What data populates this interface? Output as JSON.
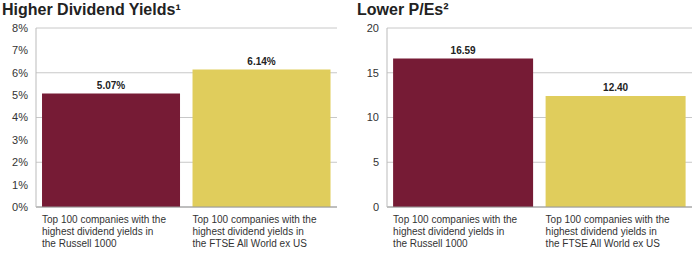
{
  "chart_data": [
    {
      "type": "bar",
      "title": "Higher Dividend Yields¹",
      "categories": [
        "Top 100 companies with the highest dividend yields in the Russell 1000",
        "Top 100 companies with the highest dividend yields in the FTSE All World ex US"
      ],
      "values": [
        5.07,
        6.14
      ],
      "value_labels": [
        "5.07%",
        "6.14%"
      ],
      "colors": [
        "#761b35",
        "#e0cd5c"
      ],
      "ylim": [
        0,
        8
      ],
      "yticks": [
        {
          "value": 0,
          "label": "0%"
        },
        {
          "value": 1,
          "label": "1%"
        },
        {
          "value": 2,
          "label": "2%"
        },
        {
          "value": 3,
          "label": "3%"
        },
        {
          "value": 4,
          "label": "4%"
        },
        {
          "value": 5,
          "label": "5%"
        },
        {
          "value": 6,
          "label": "6%"
        },
        {
          "value": 7,
          "label": "7%"
        },
        {
          "value": 8,
          "label": "8%"
        }
      ],
      "grid": true,
      "data_labels": true
    },
    {
      "type": "bar",
      "title": "Lower P/Es²",
      "categories": [
        "Top 100 companies with the highest dividend yields in the Russell 1000",
        "Top 100 companies with the highest dividend yields in the FTSE All World ex US"
      ],
      "values": [
        16.59,
        12.4
      ],
      "value_labels": [
        "16.59",
        "12.40"
      ],
      "colors": [
        "#761b35",
        "#e0cd5c"
      ],
      "ylim": [
        0,
        20
      ],
      "yticks": [
        0,
        5,
        10,
        15,
        20
      ],
      "grid": true,
      "data_labels": true
    }
  ]
}
